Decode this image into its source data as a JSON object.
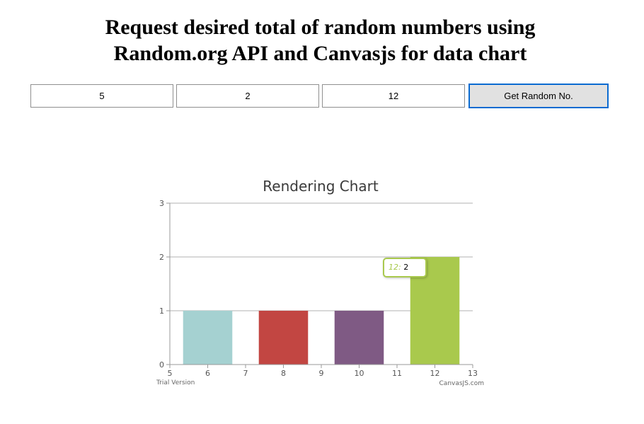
{
  "page": {
    "title_line1": "Request desired total of random numbers using",
    "title_line2": "Random.org API and Canvasjs for data chart"
  },
  "controls": {
    "total_value": "5",
    "min_value": "2",
    "max_value": "12",
    "button_label": "Get Random No."
  },
  "chart_data": {
    "type": "bar",
    "title": "Rendering Chart",
    "x": [
      6,
      8,
      10,
      12
    ],
    "values": [
      1,
      1,
      1,
      2
    ],
    "bar_colors": [
      "#a5d1d1",
      "#c24642",
      "#7f5a84",
      "#a9c94d"
    ],
    "xlim": [
      5,
      13
    ],
    "ylim": [
      0,
      3
    ],
    "xticks": [
      5,
      6,
      7,
      8,
      9,
      10,
      11,
      12,
      13
    ],
    "yticks": [
      0,
      1,
      2,
      3
    ],
    "grid": true,
    "xlabel": "",
    "ylabel": "",
    "tooltip": {
      "label": "12:",
      "value": "2"
    },
    "watermark_left": "Trial Version",
    "watermark_right": "CanvasJS.com"
  }
}
